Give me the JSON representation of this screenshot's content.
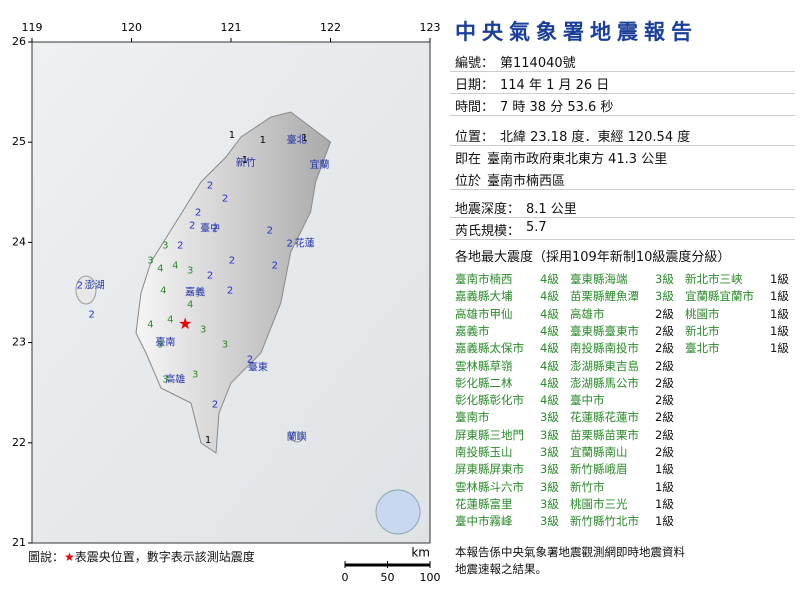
{
  "map": {
    "lon_ticks": [
      119,
      120,
      121,
      122,
      123
    ],
    "lat_ticks": [
      26,
      25,
      24,
      23,
      22,
      21
    ],
    "lon_range": [
      119,
      123
    ],
    "lat_range": [
      26,
      21
    ],
    "epicenter": {
      "lon": 120.54,
      "lat": 23.18
    },
    "stations": [
      {
        "lon": 121.01,
        "lat": 25.07,
        "intensity": 1
      },
      {
        "lon": 121.32,
        "lat": 25.02,
        "intensity": 1
      },
      {
        "lon": 121.74,
        "lat": 25.04,
        "intensity": 1
      },
      {
        "lon": 121.14,
        "lat": 24.82,
        "intensity": 1
      },
      {
        "lon": 120.79,
        "lat": 24.57,
        "intensity": 2
      },
      {
        "lon": 120.94,
        "lat": 24.44,
        "intensity": 2
      },
      {
        "lon": 120.67,
        "lat": 24.3,
        "intensity": 2
      },
      {
        "lon": 120.84,
        "lat": 24.14,
        "intensity": 2
      },
      {
        "lon": 120.61,
        "lat": 24.17,
        "intensity": 2
      },
      {
        "lon": 120.49,
        "lat": 23.97,
        "intensity": 2
      },
      {
        "lon": 120.34,
        "lat": 23.97,
        "intensity": 3
      },
      {
        "lon": 120.19,
        "lat": 23.82,
        "intensity": 3
      },
      {
        "lon": 120.44,
        "lat": 23.77,
        "intensity": 4
      },
      {
        "lon": 120.29,
        "lat": 23.74,
        "intensity": 4
      },
      {
        "lon": 120.59,
        "lat": 23.72,
        "intensity": 3
      },
      {
        "lon": 120.32,
        "lat": 23.52,
        "intensity": 4
      },
      {
        "lon": 120.79,
        "lat": 23.67,
        "intensity": 2
      },
      {
        "lon": 121.01,
        "lat": 23.82,
        "intensity": 2
      },
      {
        "lon": 121.39,
        "lat": 24.12,
        "intensity": 2
      },
      {
        "lon": 121.59,
        "lat": 23.99,
        "intensity": 2
      },
      {
        "lon": 121.44,
        "lat": 23.77,
        "intensity": 2
      },
      {
        "lon": 120.59,
        "lat": 23.38,
        "intensity": 4
      },
      {
        "lon": 120.39,
        "lat": 23.23,
        "intensity": 4
      },
      {
        "lon": 120.19,
        "lat": 23.18,
        "intensity": 4
      },
      {
        "lon": 120.72,
        "lat": 23.13,
        "intensity": 3
      },
      {
        "lon": 120.99,
        "lat": 23.52,
        "intensity": 2
      },
      {
        "lon": 120.29,
        "lat": 22.98,
        "intensity": 3
      },
      {
        "lon": 120.94,
        "lat": 22.98,
        "intensity": 3
      },
      {
        "lon": 121.19,
        "lat": 22.83,
        "intensity": 2
      },
      {
        "lon": 120.34,
        "lat": 22.63,
        "intensity": 3
      },
      {
        "lon": 120.64,
        "lat": 22.68,
        "intensity": 3
      },
      {
        "lon": 120.84,
        "lat": 22.38,
        "intensity": 2
      },
      {
        "lon": 120.77,
        "lat": 22.03,
        "intensity": 1
      },
      {
        "lon": 119.6,
        "lat": 23.28,
        "intensity": 2
      },
      {
        "lon": 119.48,
        "lat": 23.57,
        "intensity": 2
      }
    ],
    "places": [
      {
        "name": "臺北",
        "lon": 121.66,
        "lat": 25.02
      },
      {
        "name": "宜蘭",
        "lon": 121.89,
        "lat": 24.77
      },
      {
        "name": "新竹",
        "lon": 121.15,
        "lat": 24.79
      },
      {
        "name": "臺中",
        "lon": 120.79,
        "lat": 24.14
      },
      {
        "name": "花蓮",
        "lon": 121.74,
        "lat": 23.99
      },
      {
        "name": "嘉義",
        "lon": 120.64,
        "lat": 23.5
      },
      {
        "name": "臺南",
        "lon": 120.34,
        "lat": 23.0
      },
      {
        "name": "高雄",
        "lon": 120.44,
        "lat": 22.63
      },
      {
        "name": "臺東",
        "lon": 121.27,
        "lat": 22.75
      },
      {
        "name": "澎湖",
        "lon": 119.63,
        "lat": 23.57
      },
      {
        "name": "蘭嶼",
        "lon": 121.66,
        "lat": 22.06
      }
    ],
    "legend_prefix": "圖說：",
    "legend_star": "★",
    "legend_text": "表震央位置，數字表示該測站震度",
    "scale": {
      "unit": "km",
      "ticks": [
        0,
        50,
        100
      ]
    }
  },
  "report": {
    "title": "中央氣象署地震報告",
    "lines": [
      {
        "label": "編號：",
        "value": "第114040號"
      },
      {
        "label": "日期：",
        "value": "114 年 1 月 26 日"
      },
      {
        "label": "時間：",
        "value": "7 時 38 分 53.6 秒"
      },
      {
        "label": "位置：",
        "value": "北緯 23.18 度．東經 120.54 度"
      },
      {
        "label": "即在",
        "value": "臺南市政府東北東方 41.3 公里"
      },
      {
        "label": "位於",
        "value": "臺南市楠西區"
      },
      {
        "label": "地震深度：",
        "value": "8.1 公里"
      },
      {
        "label": "芮氏規模：",
        "value": "5.7"
      }
    ],
    "intensity_heading": "各地最大震度（採用109年新制10級震度分級）",
    "columns": [
      [
        [
          "臺南市楠西",
          "4級"
        ],
        [
          "嘉義縣大埔",
          "4級"
        ],
        [
          "高雄市甲仙",
          "4級"
        ],
        [
          "嘉義市",
          "4級"
        ],
        [
          "嘉義縣太保市",
          "4級"
        ],
        [
          "雲林縣草嶺",
          "4級"
        ],
        [
          "彰化縣二林",
          "4級"
        ],
        [
          "彰化縣彰化市",
          "4級"
        ],
        [
          "臺南市",
          "3級"
        ],
        [
          "屏東縣三地門",
          "3級"
        ],
        [
          "南投縣玉山",
          "3級"
        ],
        [
          "屏東縣屏東市",
          "3級"
        ],
        [
          "雲林縣斗六市",
          "3級"
        ],
        [
          "花蓮縣富里",
          "3級"
        ],
        [
          "臺中市霧峰",
          "3級"
        ]
      ],
      [
        [
          "臺東縣海端",
          "3級"
        ],
        [
          "苗栗縣鯉魚潭",
          "3級"
        ],
        [
          "高雄市",
          "2級"
        ],
        [
          "臺東縣臺東市",
          "2級"
        ],
        [
          "南投縣南投市",
          "2級"
        ],
        [
          "澎湖縣東吉島",
          "2級"
        ],
        [
          "澎湖縣馬公市",
          "2級"
        ],
        [
          "臺中市",
          "2級"
        ],
        [
          "花蓮縣花蓮市",
          "2級"
        ],
        [
          "苗栗縣苗栗市",
          "2級"
        ],
        [
          "宜蘭縣南山",
          "2級"
        ],
        [
          "新竹縣峨眉",
          "1級"
        ],
        [
          "新竹市",
          "1級"
        ],
        [
          "桃園市三光",
          "1級"
        ],
        [
          "新竹縣竹北市",
          "1級"
        ]
      ],
      [
        [
          "新北市三峽",
          "1級"
        ],
        [
          "宜蘭縣宜蘭市",
          "1級"
        ],
        [
          "桃園市",
          "1級"
        ],
        [
          "新北市",
          "1級"
        ],
        [
          "臺北市",
          "1級"
        ]
      ]
    ],
    "footer": [
      "本報告係中央氣象署地震觀測網即時地震資料",
      "地震速報之結果。"
    ]
  }
}
